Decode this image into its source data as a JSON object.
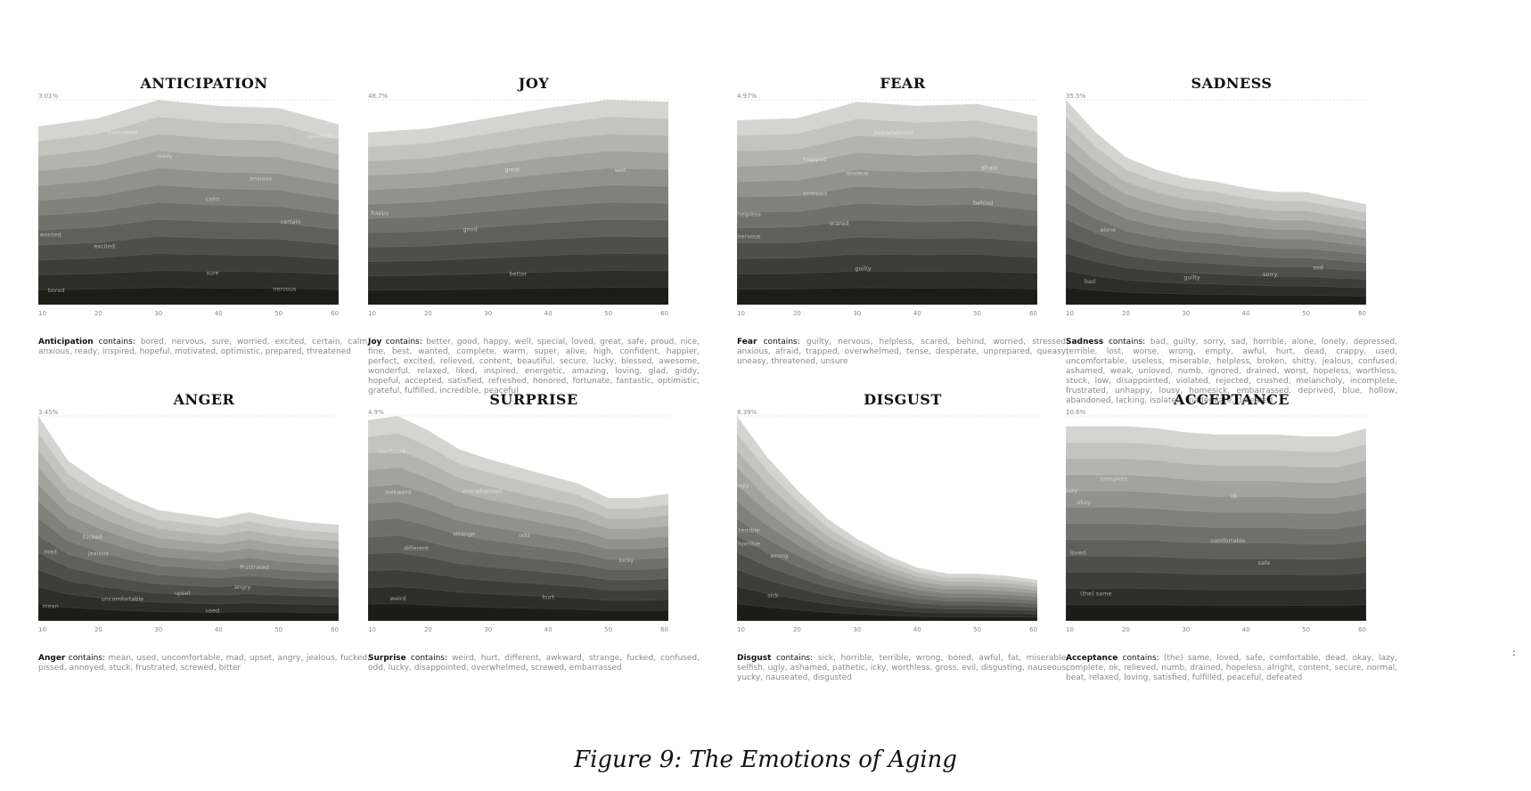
{
  "figure_caption": "Figure 9: The Emotions of Aging",
  "stray_mark": ":",
  "contains_word": "contains:",
  "chart_data": [
    {
      "type": "area",
      "title": "ANTICIPATION",
      "name": "Anticipation",
      "max_label": "3.01%",
      "x_ticks": [
        10,
        20,
        30,
        40,
        50,
        60
      ],
      "xlim": [
        10,
        60
      ],
      "x": [
        10,
        20,
        30,
        40,
        50,
        60
      ],
      "total": [
        0.87,
        0.91,
        1.0,
        0.97,
        0.96,
        0.88
      ],
      "layer_count": 12,
      "layer_labels": [
        {
          "text": "bored",
          "x": 13,
          "f": 0.07
        },
        {
          "text": "nervous",
          "x": 51,
          "f": 0.07
        },
        {
          "text": "sure",
          "x": 39,
          "f": 0.15
        },
        {
          "text": "worried",
          "x": 12,
          "f": 0.38
        },
        {
          "text": "excited",
          "x": 21,
          "f": 0.3
        },
        {
          "text": "certain",
          "x": 52,
          "f": 0.42
        },
        {
          "text": "calm",
          "x": 39,
          "f": 0.52
        },
        {
          "text": "anxious",
          "x": 47,
          "f": 0.63
        },
        {
          "text": "ready",
          "x": 31,
          "f": 0.72
        },
        {
          "text": "motivated",
          "x": 24,
          "f": 0.88
        },
        {
          "text": "optimistic",
          "x": 57,
          "f": 0.9
        }
      ],
      "contains_text": "bored, nervous, sure, worried, excited, certain, calm, anxious, ready, inspired, hopeful, motivated, optimistic, prepared, threatened"
    },
    {
      "type": "area",
      "title": "JOY",
      "name": "Joy",
      "max_label": "48.7%",
      "x_ticks": [
        10,
        20,
        30,
        40,
        50,
        60
      ],
      "xlim": [
        10,
        60
      ],
      "x": [
        10,
        20,
        30,
        40,
        50,
        60
      ],
      "total": [
        0.84,
        0.86,
        0.91,
        0.96,
        1.0,
        0.99
      ],
      "layer_count": 12,
      "layer_labels": [
        {
          "text": "better",
          "x": 35,
          "f": 0.15
        },
        {
          "text": "good",
          "x": 27,
          "f": 0.4
        },
        {
          "text": "happy",
          "x": 12,
          "f": 0.52
        },
        {
          "text": "great",
          "x": 34,
          "f": 0.7
        },
        {
          "text": "well",
          "x": 52,
          "f": 0.65
        }
      ],
      "contains_text": "better, good, happy, well, special, loved, great, safe, proud, nice, fine, best, wanted, complete, warm, super, alive, high, confident, happier, perfect, excited, relieved, content, beautiful, secure, lucky, blessed, awesome, wonderful, relaxed, liked, inspired, energetic, amazing, loving, glad, giddy, hopeful, accepted, satisfied, refreshed, honored, fortunate, fantastic, optimistic, grateful, fulfilled, incredible, peaceful"
    },
    {
      "type": "area",
      "title": "FEAR",
      "name": "Fear",
      "max_label": "4.97%",
      "x_ticks": [
        10,
        20,
        30,
        40,
        50,
        60
      ],
      "xlim": [
        10,
        60
      ],
      "x": [
        10,
        20,
        30,
        40,
        50,
        60
      ],
      "total": [
        0.9,
        0.91,
        0.99,
        0.97,
        0.98,
        0.92
      ],
      "layer_count": 12,
      "layer_labels": [
        {
          "text": "guilty",
          "x": 31,
          "f": 0.17
        },
        {
          "text": "nervous",
          "x": 12,
          "f": 0.36
        },
        {
          "text": "scared",
          "x": 27,
          "f": 0.4
        },
        {
          "text": "helpless",
          "x": 12,
          "f": 0.48
        },
        {
          "text": "behind",
          "x": 51,
          "f": 0.5
        },
        {
          "text": "screwed",
          "x": 23,
          "f": 0.57
        },
        {
          "text": "anxious",
          "x": 30,
          "f": 0.64
        },
        {
          "text": "afraid",
          "x": 52,
          "f": 0.68
        },
        {
          "text": "trapped",
          "x": 23,
          "f": 0.75
        },
        {
          "text": "overwhelmed",
          "x": 36,
          "f": 0.85
        }
      ],
      "contains_text": "guilty, nervous, helpless, scared, behind, worried, stressed, anxious, afraid, trapped, overwhelmed, tense, desperate, unprepared, queasy, uneasy, threatened, unsure"
    },
    {
      "type": "area",
      "title": "SADNESS",
      "name": "Sadness",
      "max_label": "35.5%",
      "x_ticks": [
        10,
        20,
        30,
        40,
        50,
        60
      ],
      "xlim": [
        10,
        60
      ],
      "x": [
        10,
        15,
        20,
        25,
        30,
        35,
        40,
        45,
        50,
        55,
        60
      ],
      "total": [
        1.0,
        0.84,
        0.72,
        0.66,
        0.62,
        0.6,
        0.57,
        0.55,
        0.55,
        0.52,
        0.49
      ],
      "layer_count": 12,
      "layer_labels": [
        {
          "text": "bad",
          "x": 14,
          "f": 0.12
        },
        {
          "text": "guilty",
          "x": 31,
          "f": 0.2
        },
        {
          "text": "sorry",
          "x": 44,
          "f": 0.25
        },
        {
          "text": "sad",
          "x": 52,
          "f": 0.32
        },
        {
          "text": "alone",
          "x": 17,
          "f": 0.45
        }
      ],
      "contains_text": "bad, guilty, sorry, sad, horrible, alone, lonely, depressed, terrible, lost, worse, wrong, empty, awful, hurt, dead, crappy, used, uncomfortable, useless, miserable, helpless, broken, shitty, jealous, confused, ashamed, weak, unloved, numb, ignored, drained, worst, hopeless, worthless, stuck, low, disappointed, violated, rejected, crushed, melancholy, incomplete, frustrated, unhappy, lousy, homesick, embarrassed, deprived, blue, hollow, abandoned, lacking, isolated, inadequate, defeated"
    },
    {
      "type": "area",
      "title": "ANGER",
      "name": "Anger",
      "max_label": "3.45%",
      "x_ticks": [
        10,
        20,
        30,
        40,
        50,
        60
      ],
      "xlim": [
        10,
        60
      ],
      "x": [
        10,
        15,
        20,
        25,
        30,
        35,
        40,
        45,
        50,
        55,
        60
      ],
      "total": [
        1.0,
        0.78,
        0.68,
        0.6,
        0.54,
        0.52,
        0.5,
        0.53,
        0.5,
        0.48,
        0.47
      ],
      "layer_count": 12,
      "layer_labels": [
        {
          "text": "mean",
          "x": 12,
          "f": 0.07
        },
        {
          "text": "used",
          "x": 39,
          "f": 0.08
        },
        {
          "text": "uncomfortable",
          "x": 24,
          "f": 0.16
        },
        {
          "text": "upset",
          "x": 34,
          "f": 0.24
        },
        {
          "text": "mad",
          "x": 12,
          "f": 0.36
        },
        {
          "text": "angry",
          "x": 44,
          "f": 0.3
        },
        {
          "text": "jealous",
          "x": 20,
          "f": 0.47
        },
        {
          "text": "fucked",
          "x": 19,
          "f": 0.57
        },
        {
          "text": "frustrated",
          "x": 46,
          "f": 0.48
        }
      ],
      "contains_text": "mean, used, uncomfortable, mad, upset, angry, jealous, fucked, pissed, annoyed, stuck, frustrated, screwed, bitter"
    },
    {
      "type": "area",
      "title": "SURPRISE",
      "name": "Surprise",
      "max_label": "4.9%",
      "x_ticks": [
        10,
        20,
        30,
        40,
        50,
        60
      ],
      "xlim": [
        10,
        60
      ],
      "x": [
        10,
        15,
        20,
        25,
        30,
        35,
        40,
        45,
        50,
        55,
        60
      ],
      "total": [
        0.98,
        1.0,
        0.93,
        0.84,
        0.79,
        0.75,
        0.71,
        0.67,
        0.6,
        0.6,
        0.62
      ],
      "layer_count": 12,
      "layer_labels": [
        {
          "text": "weird",
          "x": 15,
          "f": 0.1
        },
        {
          "text": "hurt",
          "x": 40,
          "f": 0.15
        },
        {
          "text": "different",
          "x": 18,
          "f": 0.36
        },
        {
          "text": "strange",
          "x": 26,
          "f": 0.5
        },
        {
          "text": "awkward",
          "x": 15,
          "f": 0.62
        },
        {
          "text": "odd",
          "x": 36,
          "f": 0.55
        },
        {
          "text": "lucky",
          "x": 53,
          "f": 0.48
        },
        {
          "text": "confused",
          "x": 14,
          "f": 0.82
        },
        {
          "text": "overwhelmed",
          "x": 29,
          "f": 0.78
        }
      ],
      "contains_text": "weird, hurt, different, awkward, strange, fucked, confused, odd, lucky, disappointed, overwhelmed, screwed, embarrassed"
    },
    {
      "type": "area",
      "title": "DISGUST",
      "name": "Disgust",
      "max_label": "8.39%",
      "x_ticks": [
        10,
        20,
        30,
        40,
        50,
        60
      ],
      "xlim": [
        10,
        60
      ],
      "x": [
        10,
        15,
        20,
        25,
        30,
        35,
        40,
        45,
        50,
        55,
        60
      ],
      "total": [
        1.0,
        0.8,
        0.64,
        0.5,
        0.4,
        0.32,
        0.26,
        0.23,
        0.23,
        0.22,
        0.2
      ],
      "layer_count": 12,
      "layer_labels": [
        {
          "text": "sick",
          "x": 16,
          "f": 0.15
        },
        {
          "text": "horrible",
          "x": 12,
          "f": 0.4
        },
        {
          "text": "wrong",
          "x": 17,
          "f": 0.42
        },
        {
          "text": "terrible",
          "x": 12,
          "f": 0.47
        },
        {
          "text": "ugly",
          "x": 11,
          "f": 0.68
        }
      ],
      "contains_text": "sick, horrible, terrible, wrong, bored, awful, fat, miserable, selfish, ugly, ashamed, pathetic, icky, worthless, gross, evil, disgusting, nauseous, yucky, nauseated, disgusted"
    },
    {
      "type": "area",
      "title": "ACCEPTANCE",
      "name": "Acceptance",
      "max_label": "10.6%",
      "x_ticks": [
        10,
        20,
        30,
        40,
        50,
        60
      ],
      "xlim": [
        10,
        60
      ],
      "x": [
        10,
        15,
        20,
        25,
        30,
        35,
        40,
        45,
        50,
        55,
        60
      ],
      "total": [
        0.95,
        0.95,
        0.95,
        0.94,
        0.92,
        0.91,
        0.91,
        0.91,
        0.9,
        0.9,
        0.94
      ],
      "layer_count": 12,
      "layer_labels": [
        {
          "text": "(the) same",
          "x": 15,
          "f": 0.13
        },
        {
          "text": "safe",
          "x": 43,
          "f": 0.3
        },
        {
          "text": "loved",
          "x": 12,
          "f": 0.34
        },
        {
          "text": "comfortable",
          "x": 37,
          "f": 0.42
        },
        {
          "text": "okay",
          "x": 13,
          "f": 0.6
        },
        {
          "text": "lazy",
          "x": 11,
          "f": 0.66
        },
        {
          "text": "complete",
          "x": 18,
          "f": 0.72
        },
        {
          "text": "ok",
          "x": 38,
          "f": 0.66
        }
      ],
      "contains_text": "(the) same, loved, safe, comfortable, dead, okay, lazy, complete, ok, relieved, numb, drained, hopeless, alright, content, secure, normal, beat, relaxed, loving, satisfied, fulfilled, peaceful, defeated"
    }
  ]
}
